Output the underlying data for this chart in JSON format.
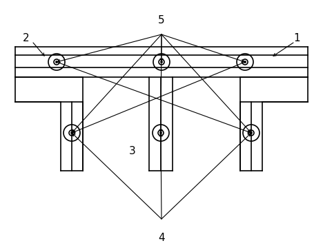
{
  "bg_color": "#ffffff",
  "line_color": "#000000",
  "lw": 1.2,
  "tlw": 0.8,
  "label_fontsize": 11,
  "figsize": [
    4.68,
    3.66
  ],
  "dpi": 100
}
